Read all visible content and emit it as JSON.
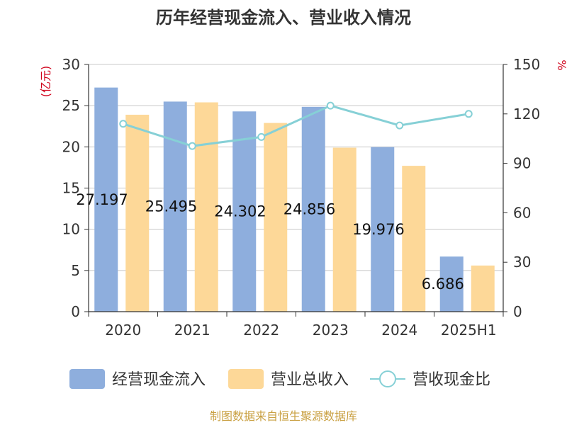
{
  "chart_data": {
    "type": "bar",
    "title": "历年经营现金流入、营业收入情况",
    "categories": [
      "2020",
      "2021",
      "2022",
      "2023",
      "2024",
      "2025H1"
    ],
    "y_left": {
      "label": "(亿元)",
      "range": [
        0,
        30
      ],
      "ticks": [
        "0",
        "5",
        "10",
        "15",
        "20",
        "25",
        "30"
      ]
    },
    "y_right": {
      "label": "%",
      "range": [
        0,
        150
      ],
      "ticks": [
        "0",
        "30",
        "60",
        "90",
        "120",
        "150"
      ]
    },
    "series": [
      {
        "name": "经营现金流入",
        "kind": "bar",
        "axis": "left",
        "color": "#8eaedd",
        "values": [
          27.197,
          25.495,
          24.302,
          24.856,
          19.976,
          6.686
        ],
        "labels": [
          "27.197",
          "25.495",
          "24.302",
          "24.856",
          "19.976",
          "6.686"
        ]
      },
      {
        "name": "营业总收入",
        "kind": "bar",
        "axis": "left",
        "color": "#fdd898",
        "values": [
          23.9,
          25.4,
          22.9,
          19.9,
          17.7,
          5.6
        ]
      },
      {
        "name": "营收现金比",
        "kind": "line",
        "axis": "right",
        "color": "#86d0d6",
        "values": [
          114,
          100.5,
          106,
          125,
          113,
          120
        ]
      }
    ],
    "grid": true,
    "legend_position": "bottom"
  },
  "footer": {
    "source": "制图数据来自恒生聚源数据库"
  }
}
